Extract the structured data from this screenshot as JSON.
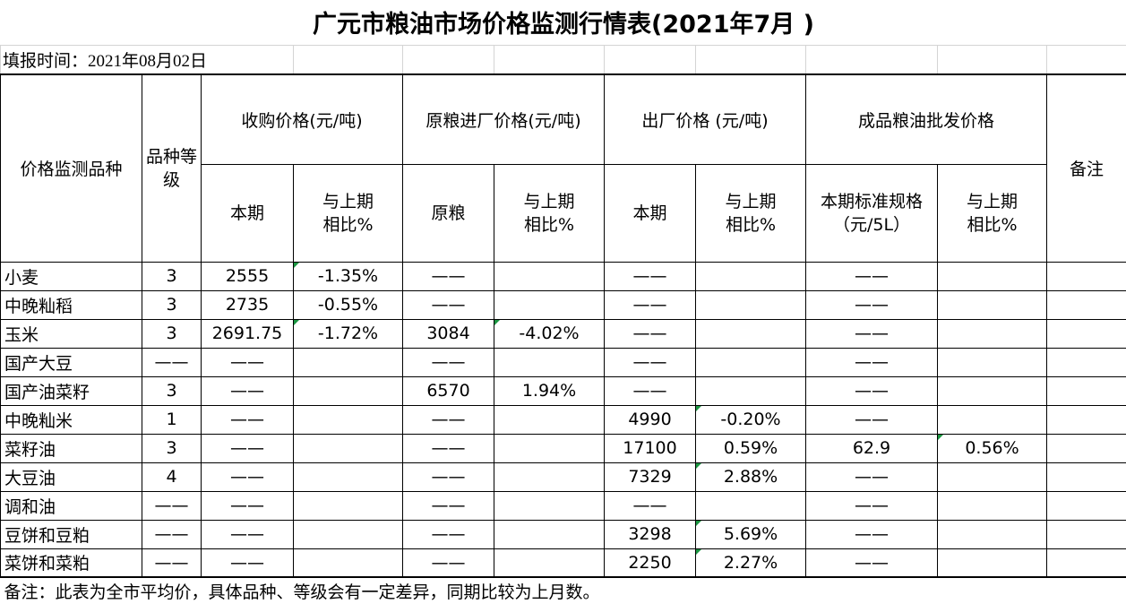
{
  "sheet": {
    "title": "广元市粮油市场价格监测行情表(2021年7月 )",
    "report_date": "填报时间：2021年08月02日",
    "headers": {
      "item": "价格监测品种",
      "grade": "品种等\n级",
      "purchase": "收购价格(元/吨)",
      "raw_grain_in": "原粮进厂价格(元/吨)",
      "ex_factory": "出厂价格 (元/吨)",
      "wholesale": "成品粮油批发价格",
      "remark": "备注",
      "sub": [
        "本期",
        "与上期\n相比%",
        "原粮",
        "与上期\n相比%",
        "本期",
        "与上期\n相比%",
        "本期标准规格\n（元/5L）",
        "与上期\n相比%"
      ]
    },
    "rows": [
      {
        "cells": [
          "小麦",
          "3",
          "2555",
          "-1.35%",
          "——",
          "",
          "——",
          "",
          "——",
          "",
          ""
        ],
        "green_marker_cols": [
          3
        ]
      },
      {
        "cells": [
          "中晚籼稻",
          "3",
          "2735",
          "-0.55%",
          "——",
          "",
          "——",
          "",
          "——",
          "",
          ""
        ],
        "green_marker_cols": []
      },
      {
        "cells": [
          "玉米",
          "3",
          "2691.75",
          "-1.72%",
          "3084",
          "-4.02%",
          "——",
          "",
          "——",
          "",
          ""
        ],
        "green_marker_cols": [
          3,
          5
        ]
      },
      {
        "cells": [
          "国产大豆",
          "——",
          "——",
          "",
          "——",
          "",
          "——",
          "",
          "——",
          "",
          ""
        ],
        "green_marker_cols": []
      },
      {
        "cells": [
          "国产油菜籽",
          "3",
          "——",
          "",
          "6570",
          "1.94%",
          "——",
          "",
          "——",
          "",
          ""
        ],
        "green_marker_cols": []
      },
      {
        "cells": [
          "中晚籼米",
          "1",
          "——",
          "",
          "——",
          "",
          "4990",
          "-0.20%",
          "——",
          "",
          ""
        ],
        "green_marker_cols": [
          7
        ]
      },
      {
        "cells": [
          "菜籽油",
          "3",
          "——",
          "",
          "——",
          "",
          "17100",
          "0.59%",
          "62.9",
          "0.56%",
          ""
        ],
        "green_marker_cols": [
          9
        ]
      },
      {
        "cells": [
          "大豆油",
          "4",
          "——",
          "",
          "——",
          "",
          "7329",
          "2.88%",
          "——",
          "",
          ""
        ],
        "green_marker_cols": [
          7
        ]
      },
      {
        "cells": [
          "调和油",
          "——",
          "——",
          "",
          "——",
          "",
          "——",
          "",
          "——",
          "",
          ""
        ],
        "green_marker_cols": []
      },
      {
        "cells": [
          "豆饼和豆粕",
          "——",
          "——",
          "",
          "——",
          "",
          "3298",
          "5.69%",
          "——",
          "",
          ""
        ],
        "green_marker_cols": [
          7
        ]
      },
      {
        "cells": [
          "菜饼和菜粕",
          "——",
          "——",
          "",
          "——",
          "",
          "2250",
          "2.27%",
          "——",
          "",
          ""
        ],
        "green_marker_cols": [
          7
        ]
      }
    ],
    "footnote": "备注：此表为全市平均价，具体品种、等级会有一定差异，同期比较为上月数。"
  },
  "colors": {
    "text": "#000000",
    "border": "#000000",
    "gridline": "#d4d4d4",
    "error_indicator": "#1a9641"
  }
}
